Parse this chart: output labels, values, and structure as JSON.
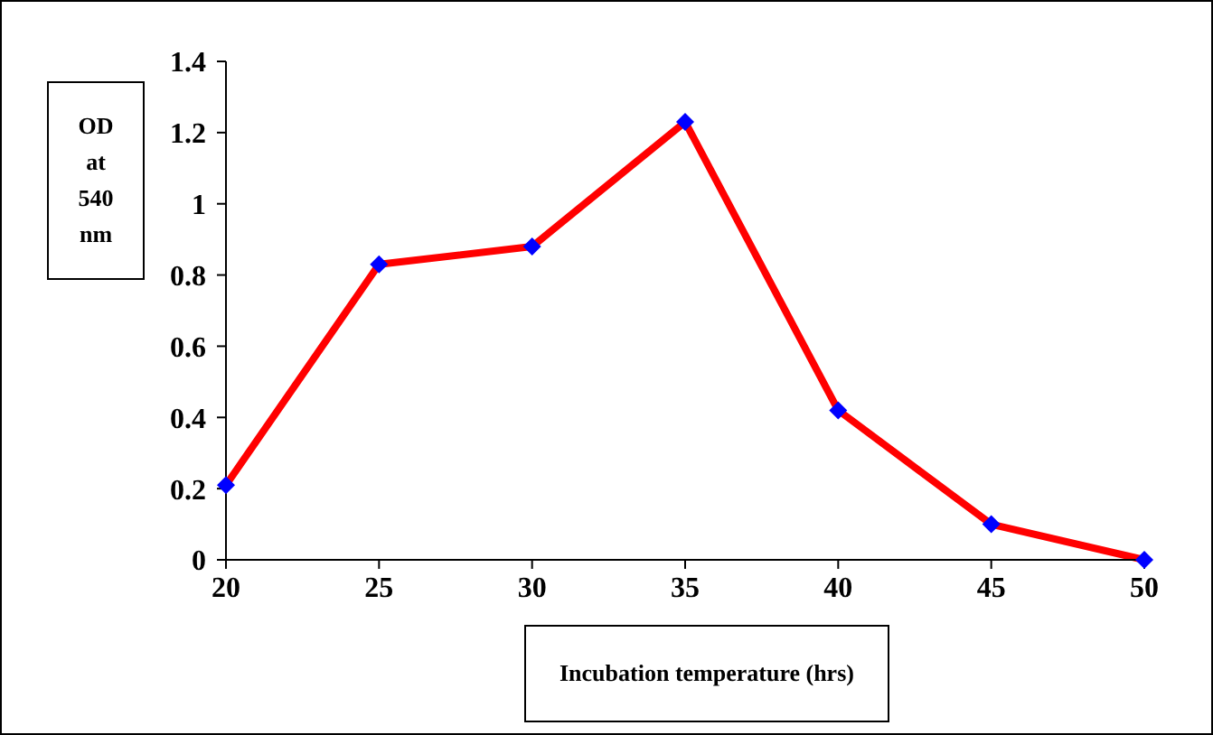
{
  "chart_data": {
    "type": "line",
    "xlabel": "Incubation temperature (hrs)",
    "ylabel": "OD at 540 nm",
    "x": [
      20,
      25,
      30,
      35,
      40,
      45,
      50
    ],
    "series": [
      {
        "color": "#ff0000",
        "marker": "none",
        "values": [
          0.21,
          0.83,
          0.88,
          1.23,
          0.42,
          0.1,
          0
        ]
      },
      {
        "type": "scatter",
        "color": "#0000ff",
        "values": [
          0.21,
          0.83,
          0.88,
          1.23,
          0.42,
          0.1,
          0
        ]
      }
    ],
    "xlim": [
      20,
      50
    ],
    "xticks": [
      20,
      25,
      30,
      35,
      40,
      45,
      50
    ],
    "ylim": [
      0,
      1.4
    ],
    "yticks": [
      0,
      0.2,
      0.4,
      0.6,
      0.8,
      1,
      1.2,
      1.4
    ],
    "grid": false,
    "marker": "diamond",
    "line_style": "solid"
  }
}
